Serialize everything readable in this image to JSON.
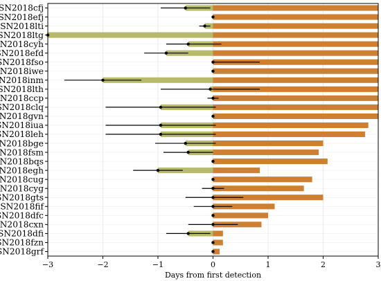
{
  "chart_data": {
    "type": "bar",
    "xlabel": "Days from first detection",
    "xlim": [
      -3,
      3
    ],
    "xticks": [
      -3,
      -2,
      -1,
      0,
      1,
      2,
      3
    ],
    "xtick_labels": [
      "−3",
      "−2",
      "−1",
      "0",
      "1",
      "2",
      "3"
    ],
    "grid": true,
    "colors": {
      "negative_bar": "#b7b96b",
      "positive_bar": "#cd7f32",
      "errorbar": "#000000"
    },
    "categories": [
      "SN2018cfj",
      "SN2018efj",
      "SN2018lti",
      "SN2018ltg",
      "SN2018cyh",
      "SN2018efd",
      "SN2018fso",
      "SN2018iwe",
      "SN2018inm",
      "SN2018lth",
      "SN2018ccp",
      "SN2018clq",
      "SN2018gvn",
      "SN2018iua",
      "SN2018leh",
      "SN2018bge",
      "SN2018fsm",
      "SN2018bqs",
      "SN2018egh",
      "SN2018cug",
      "SN2018cyg",
      "SN2018gts",
      "SN2018fif",
      "SN2018dfc",
      "SN2018cxn",
      "SN2018dfi",
      "SN2018fzn",
      "SN2018grf"
    ],
    "series": [
      {
        "values": [
          -0.5,
          0,
          -0.15,
          -3.0,
          -0.45,
          -0.85,
          0,
          0,
          -2.0,
          -0.05,
          0,
          -0.95,
          0,
          -0.95,
          -0.95,
          -0.5,
          -0.45,
          0,
          -1.0,
          0,
          0,
          0,
          0,
          0,
          0,
          -0.45,
          0,
          0
        ],
        "err_low": [
          0.45,
          0,
          0.1,
          0,
          0.4,
          0.4,
          0,
          0,
          0.7,
          0.9,
          0.1,
          1.0,
          0,
          1.0,
          1.0,
          0.55,
          0.45,
          0,
          0.45,
          0,
          0.2,
          0.5,
          0.35,
          0,
          0.45,
          0.4,
          0,
          0
        ],
        "err_high": [
          0.45,
          0,
          0.1,
          0,
          0.6,
          0.4,
          0.85,
          0,
          0.7,
          0.9,
          0.1,
          1.0,
          0,
          1.0,
          1.0,
          0.55,
          0.45,
          0,
          0.45,
          0,
          0.2,
          0.55,
          0.35,
          0,
          0.45,
          0.4,
          0,
          0
        ]
      },
      {
        "values": [
          3.0,
          3.0,
          3.0,
          3.0,
          3.0,
          3.0,
          3.0,
          3.0,
          3.0,
          3.0,
          3.0,
          3.0,
          3.0,
          2.82,
          2.76,
          2.0,
          1.92,
          2.08,
          0.85,
          1.8,
          1.65,
          2.0,
          1.12,
          1.0,
          0.88,
          0.18,
          0.18,
          0.12
        ]
      }
    ]
  }
}
